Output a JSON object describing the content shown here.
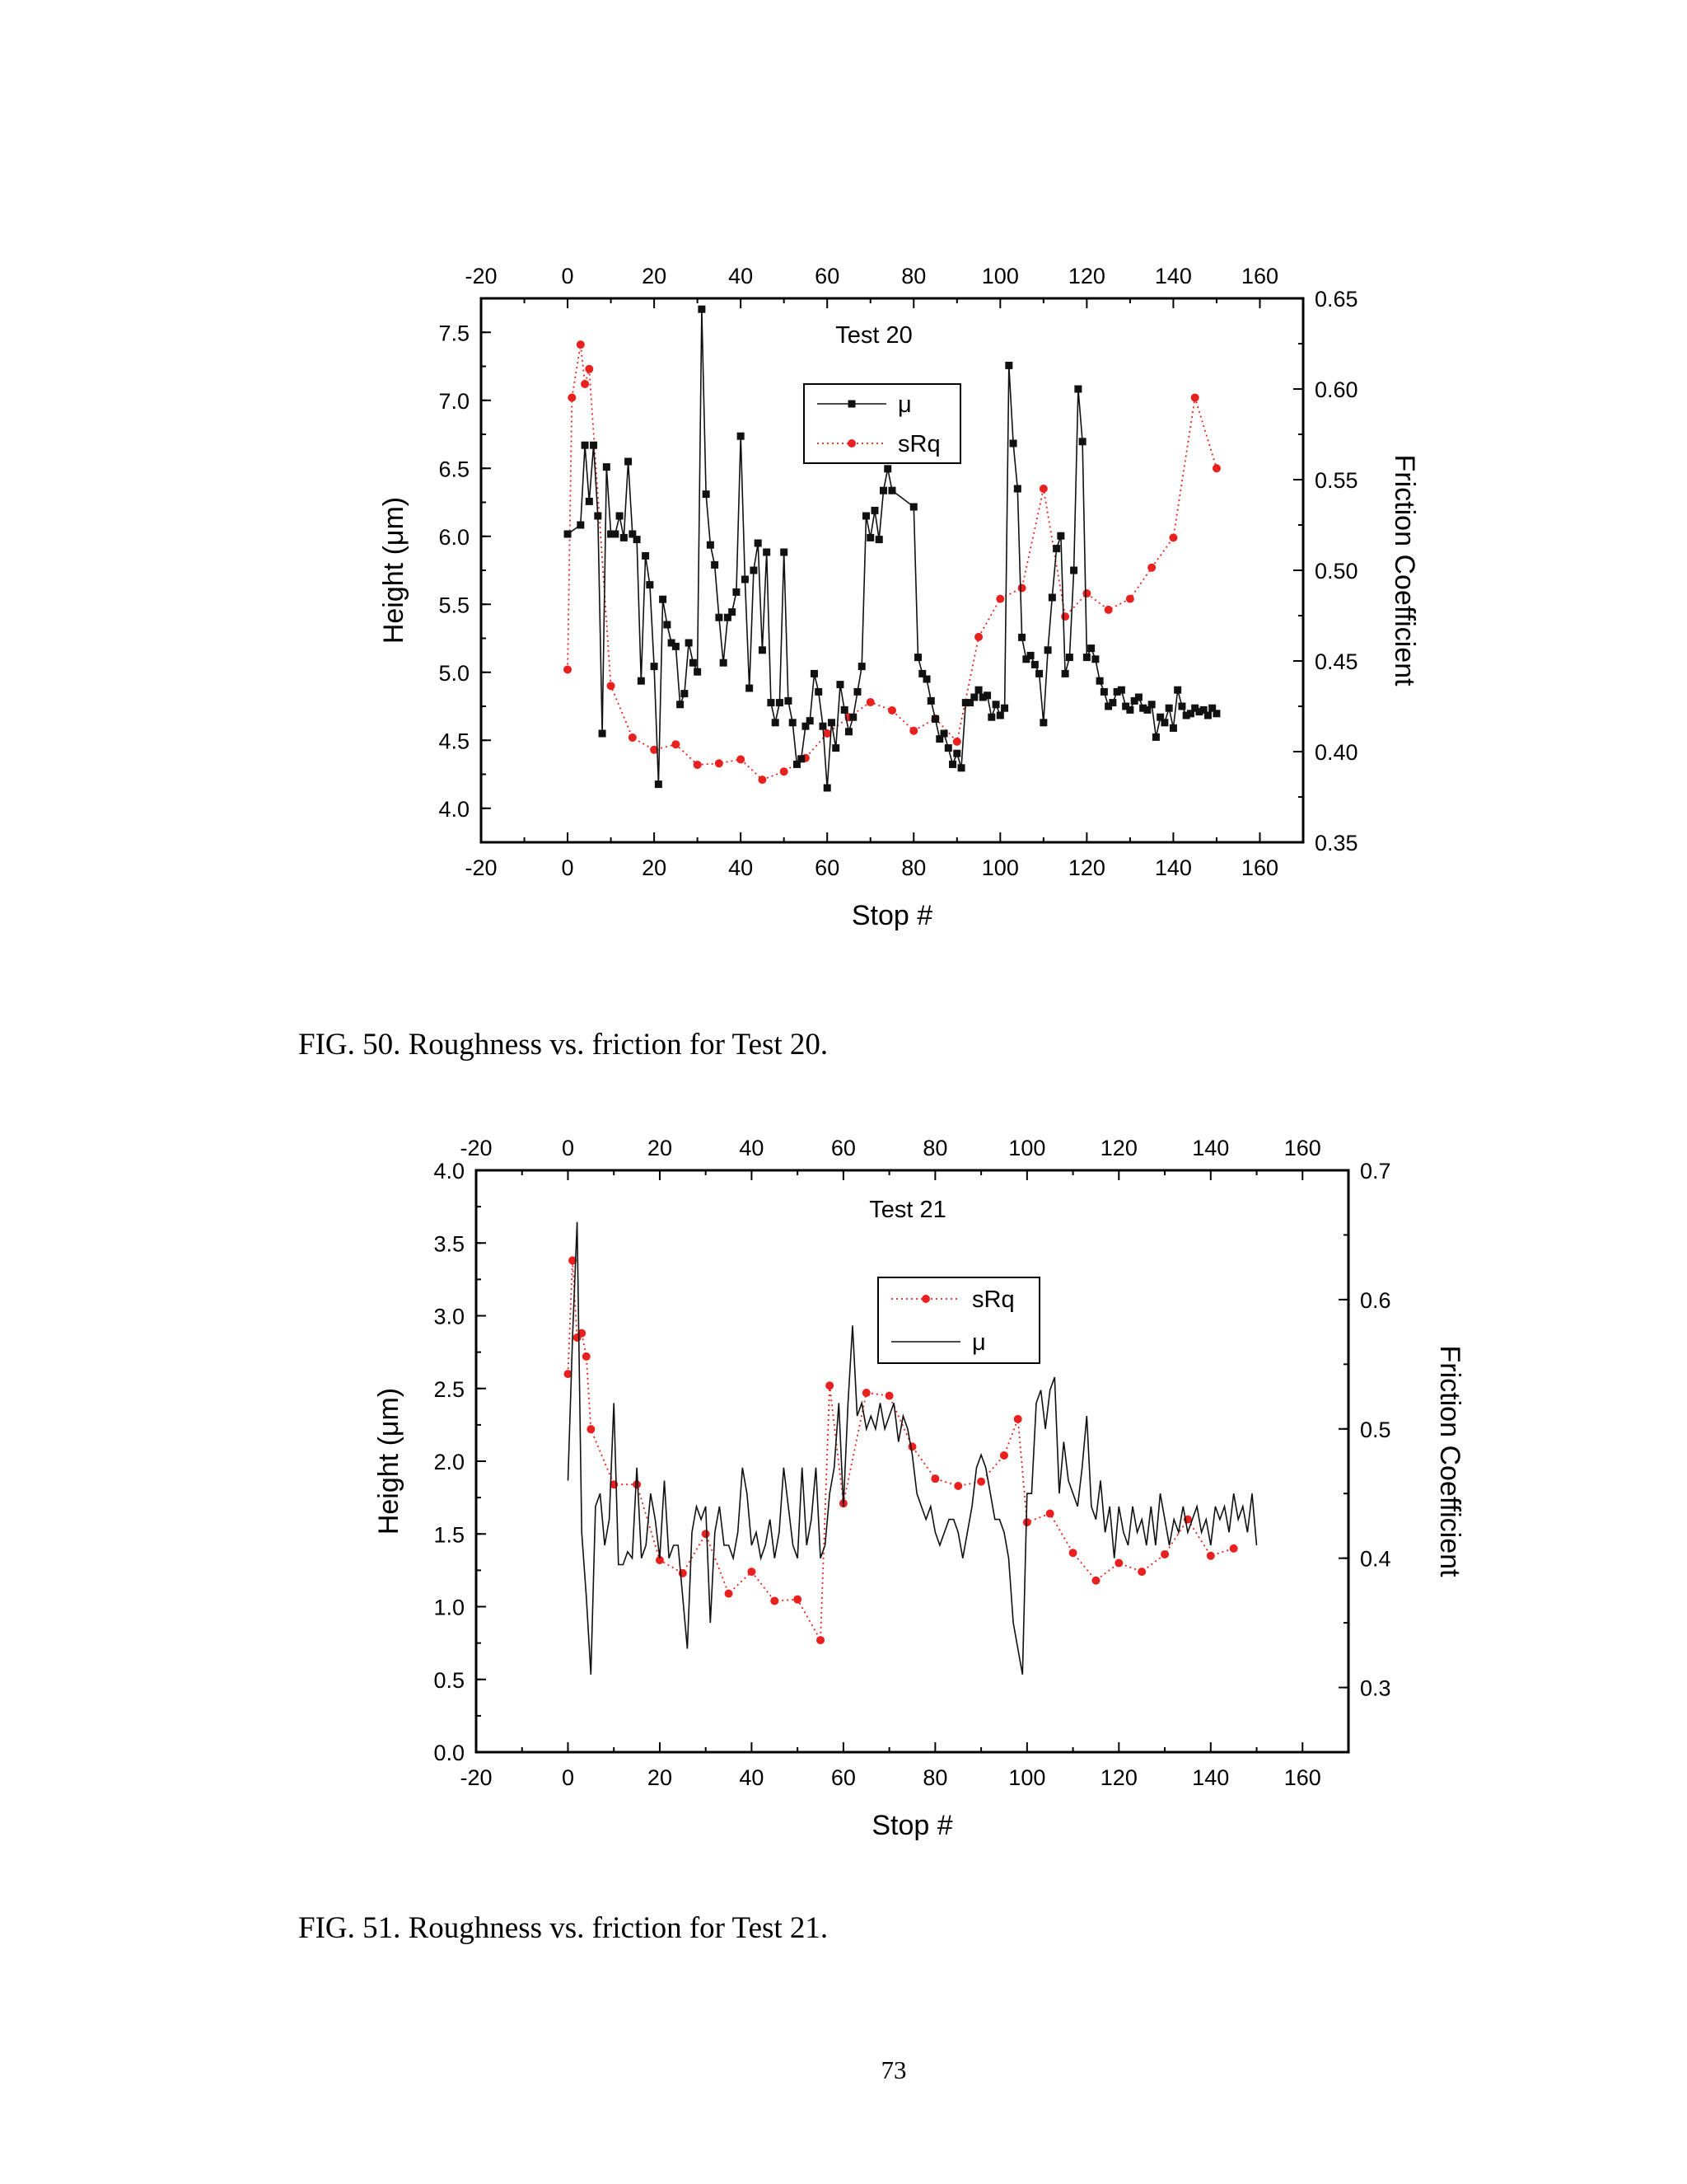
{
  "chart_data": [
    {
      "type": "line",
      "title": "Test 20",
      "xlabel": "Stop #",
      "ylabel": "Height (μm)",
      "y2label": "Friction Coefficient",
      "xlim": [
        -20,
        170
      ],
      "ylim": [
        3.75,
        7.75
      ],
      "y2lim": [
        0.35,
        0.65
      ],
      "xticks": [
        "-20",
        "0",
        "20",
        "40",
        "60",
        "80",
        "100",
        "120",
        "140",
        "160"
      ],
      "yticks": [
        "4.0",
        "4.5",
        "5.0",
        "5.5",
        "6.0",
        "6.5",
        "7.0",
        "7.5"
      ],
      "y2ticks": [
        "0.35",
        "0.40",
        "0.45",
        "0.50",
        "0.55",
        "0.60",
        "0.65"
      ],
      "legend": [
        "μ",
        "sRq"
      ],
      "legend_position": "top-center",
      "series": [
        {
          "name": "sRq",
          "axis": "left",
          "style": "dotted-red-circles",
          "x": [
            0,
            1,
            3,
            4,
            5,
            10,
            15,
            20,
            25,
            30,
            35,
            40,
            45,
            50,
            55,
            60,
            65,
            70,
            75,
            80,
            85,
            90,
            95,
            100,
            105,
            110,
            115,
            120,
            125,
            130,
            135,
            140,
            145,
            150
          ],
          "y": [
            5.02,
            7.02,
            7.41,
            7.12,
            7.23,
            4.9,
            4.52,
            4.43,
            4.47,
            4.32,
            4.33,
            4.36,
            4.21,
            4.27,
            4.37,
            4.55,
            4.67,
            4.78,
            4.72,
            4.57,
            4.66,
            4.49,
            5.26,
            5.54,
            5.62,
            6.35,
            5.41,
            5.58,
            5.46,
            5.54,
            5.77,
            5.99,
            7.02,
            6.5
          ]
        },
        {
          "name": "μ",
          "axis": "right",
          "style": "solid-black-squares",
          "x": [
            0,
            3,
            4,
            5,
            6,
            7,
            8,
            9,
            10,
            11,
            12,
            13,
            14,
            15,
            16,
            17,
            18,
            19,
            20,
            21,
            22,
            23,
            24,
            25,
            26,
            27,
            28,
            29,
            30,
            31,
            32,
            33,
            34,
            35,
            36,
            37,
            38,
            39,
            40,
            41,
            42,
            43,
            44,
            45,
            46,
            47,
            48,
            49,
            50,
            51,
            52,
            53,
            54,
            55,
            56,
            57,
            58,
            59,
            60,
            61,
            62,
            63,
            64,
            65,
            66,
            67,
            68,
            69,
            70,
            71,
            72,
            73,
            74,
            75,
            80,
            81,
            82,
            83,
            84,
            85,
            86,
            87,
            88,
            89,
            90,
            91,
            92,
            93,
            94,
            95,
            96,
            97,
            98,
            99,
            100,
            101,
            102,
            103,
            104,
            105,
            106,
            107,
            108,
            109,
            110,
            111,
            112,
            113,
            114,
            115,
            116,
            117,
            118,
            119,
            120,
            121,
            122,
            123,
            124,
            125,
            126,
            127,
            128,
            129,
            130,
            131,
            132,
            133,
            134,
            135,
            136,
            137,
            138,
            139,
            140,
            141,
            142,
            143,
            144,
            145,
            146,
            147,
            148,
            149,
            150
          ],
          "y": [
            0.52,
            0.525,
            0.569,
            0.538,
            0.569,
            0.53,
            0.41,
            0.557,
            0.52,
            0.52,
            0.53,
            0.518,
            0.56,
            0.52,
            0.517,
            0.439,
            0.508,
            0.492,
            0.447,
            0.382,
            0.484,
            0.47,
            0.46,
            0.458,
            0.426,
            0.432,
            0.46,
            0.449,
            0.444,
            0.644,
            0.542,
            0.514,
            0.503,
            0.474,
            0.449,
            0.474,
            0.477,
            0.488,
            0.574,
            0.495,
            0.435,
            0.5,
            0.515,
            0.456,
            0.51,
            0.427,
            0.416,
            0.427,
            0.51,
            0.428,
            0.416,
            0.393,
            0.396,
            0.414,
            0.417,
            0.443,
            0.433,
            0.414,
            0.38,
            0.416,
            0.402,
            0.437,
            0.423,
            0.411,
            0.419,
            0.433,
            0.447,
            0.53,
            0.518,
            0.533,
            0.517,
            0.544,
            0.556,
            0.544,
            0.535,
            0.452,
            0.443,
            0.44,
            0.428,
            0.418,
            0.407,
            0.41,
            0.402,
            0.393,
            0.399,
            0.391,
            0.427,
            0.427,
            0.43,
            0.434,
            0.43,
            0.431,
            0.419,
            0.426,
            0.42,
            0.424,
            0.613,
            0.57,
            0.545,
            0.463,
            0.451,
            0.453,
            0.448,
            0.443,
            0.416,
            0.456,
            0.485,
            0.512,
            0.519,
            0.443,
            0.452,
            0.5,
            0.6,
            0.571,
            0.452,
            0.457,
            0.451,
            0.439,
            0.433,
            0.425,
            0.427,
            0.433,
            0.434,
            0.425,
            0.423,
            0.428,
            0.43,
            0.424,
            0.423,
            0.426,
            0.408,
            0.419,
            0.416,
            0.424,
            0.413,
            0.434,
            0.425,
            0.42,
            0.421,
            0.424,
            0.422,
            0.423,
            0.42,
            0.424,
            0.421
          ]
        }
      ]
    },
    {
      "type": "line",
      "title": "Test 21",
      "xlabel": "Stop #",
      "ylabel": "Height (μm)",
      "y2label": "Friction Coefficient",
      "xlim": [
        -20,
        170
      ],
      "ylim": [
        0.0,
        4.0
      ],
      "y2lim": [
        0.25,
        0.7
      ],
      "xticks": [
        "-20",
        "0",
        "20",
        "40",
        "60",
        "80",
        "100",
        "120",
        "140",
        "160"
      ],
      "yticks": [
        "0.0",
        "0.5",
        "1.0",
        "1.5",
        "2.0",
        "2.5",
        "3.0",
        "3.5",
        "4.0"
      ],
      "y2ticks": [
        "0.3",
        "0.4",
        "0.5",
        "0.6",
        "0.7"
      ],
      "legend": [
        "sRq",
        "μ"
      ],
      "legend_position": "top-center",
      "series": [
        {
          "name": "sRq",
          "axis": "left",
          "style": "dotted-red-circles",
          "x": [
            0,
            1,
            2,
            3,
            4,
            5,
            10,
            15,
            20,
            25,
            30,
            35,
            40,
            45,
            50,
            55,
            57,
            60,
            65,
            70,
            75,
            80,
            85,
            90,
            95,
            98,
            100,
            105,
            110,
            115,
            120,
            125,
            130,
            135,
            140,
            145
          ],
          "y": [
            2.6,
            3.38,
            2.85,
            2.88,
            2.72,
            2.22,
            1.84,
            1.84,
            1.32,
            1.23,
            1.5,
            1.09,
            1.24,
            1.04,
            1.05,
            0.77,
            2.52,
            1.71,
            2.47,
            2.45,
            2.1,
            1.88,
            1.83,
            1.86,
            2.04,
            2.29,
            1.58,
            1.64,
            1.37,
            1.18,
            1.3,
            1.24,
            1.36,
            1.6,
            1.35,
            1.4
          ]
        },
        {
          "name": "μ",
          "axis": "right",
          "style": "solid-black-line",
          "x": [
            0,
            1,
            2,
            3,
            4,
            5,
            6,
            7,
            8,
            9,
            10,
            11,
            12,
            13,
            14,
            15,
            16,
            17,
            18,
            19,
            20,
            21,
            22,
            23,
            24,
            25,
            26,
            27,
            28,
            29,
            30,
            31,
            32,
            33,
            34,
            35,
            36,
            37,
            38,
            39,
            40,
            41,
            42,
            43,
            44,
            45,
            46,
            47,
            48,
            49,
            50,
            51,
            52,
            53,
            54,
            55,
            56,
            57,
            58,
            59,
            60,
            61,
            62,
            63,
            64,
            65,
            66,
            67,
            68,
            69,
            70,
            71,
            72,
            73,
            74,
            75,
            76,
            77,
            78,
            79,
            80,
            81,
            82,
            83,
            84,
            85,
            86,
            87,
            88,
            89,
            90,
            91,
            92,
            93,
            94,
            95,
            96,
            97,
            98,
            99,
            100,
            101,
            102,
            103,
            104,
            105,
            106,
            107,
            108,
            109,
            110,
            111,
            112,
            113,
            114,
            115,
            116,
            117,
            118,
            119,
            120,
            121,
            122,
            123,
            124,
            125,
            126,
            127,
            128,
            129,
            130,
            131,
            132,
            133,
            134,
            135,
            136,
            137,
            138,
            139,
            140,
            141,
            142,
            143,
            144,
            145,
            146,
            147,
            148,
            149,
            150
          ],
          "y": [
            0.46,
            0.57,
            0.66,
            0.42,
            0.37,
            0.31,
            0.44,
            0.45,
            0.41,
            0.43,
            0.52,
            0.395,
            0.395,
            0.405,
            0.4,
            0.47,
            0.4,
            0.41,
            0.45,
            0.43,
            0.4,
            0.46,
            0.4,
            0.41,
            0.41,
            0.37,
            0.33,
            0.42,
            0.44,
            0.43,
            0.44,
            0.35,
            0.42,
            0.44,
            0.41,
            0.41,
            0.4,
            0.42,
            0.47,
            0.45,
            0.41,
            0.42,
            0.4,
            0.41,
            0.43,
            0.4,
            0.42,
            0.47,
            0.44,
            0.41,
            0.4,
            0.47,
            0.41,
            0.43,
            0.47,
            0.4,
            0.41,
            0.45,
            0.47,
            0.52,
            0.44,
            0.52,
            0.58,
            0.51,
            0.52,
            0.5,
            0.51,
            0.5,
            0.52,
            0.5,
            0.51,
            0.52,
            0.49,
            0.51,
            0.5,
            0.48,
            0.45,
            0.44,
            0.43,
            0.44,
            0.42,
            0.41,
            0.42,
            0.43,
            0.43,
            0.42,
            0.4,
            0.42,
            0.44,
            0.47,
            0.48,
            0.47,
            0.45,
            0.43,
            0.43,
            0.42,
            0.4,
            0.35,
            0.33,
            0.31,
            0.45,
            0.45,
            0.52,
            0.53,
            0.5,
            0.53,
            0.54,
            0.45,
            0.49,
            0.46,
            0.45,
            0.44,
            0.47,
            0.51,
            0.44,
            0.43,
            0.46,
            0.42,
            0.44,
            0.4,
            0.44,
            0.42,
            0.41,
            0.44,
            0.42,
            0.43,
            0.41,
            0.44,
            0.41,
            0.45,
            0.43,
            0.41,
            0.43,
            0.42,
            0.44,
            0.42,
            0.43,
            0.44,
            0.42,
            0.43,
            0.41,
            0.44,
            0.43,
            0.44,
            0.42,
            0.45,
            0.43,
            0.44,
            0.42,
            0.45,
            0.41
          ]
        }
      ]
    }
  ],
  "figure_captions": [
    "FIG. 50.  Roughness vs. friction for Test 20.",
    "FIG. 51.  Roughness vs. friction for Test 21."
  ],
  "page_number": "73",
  "colors": {
    "srq": "#e8201e",
    "mu": "#111111",
    "axis": "#000000"
  }
}
